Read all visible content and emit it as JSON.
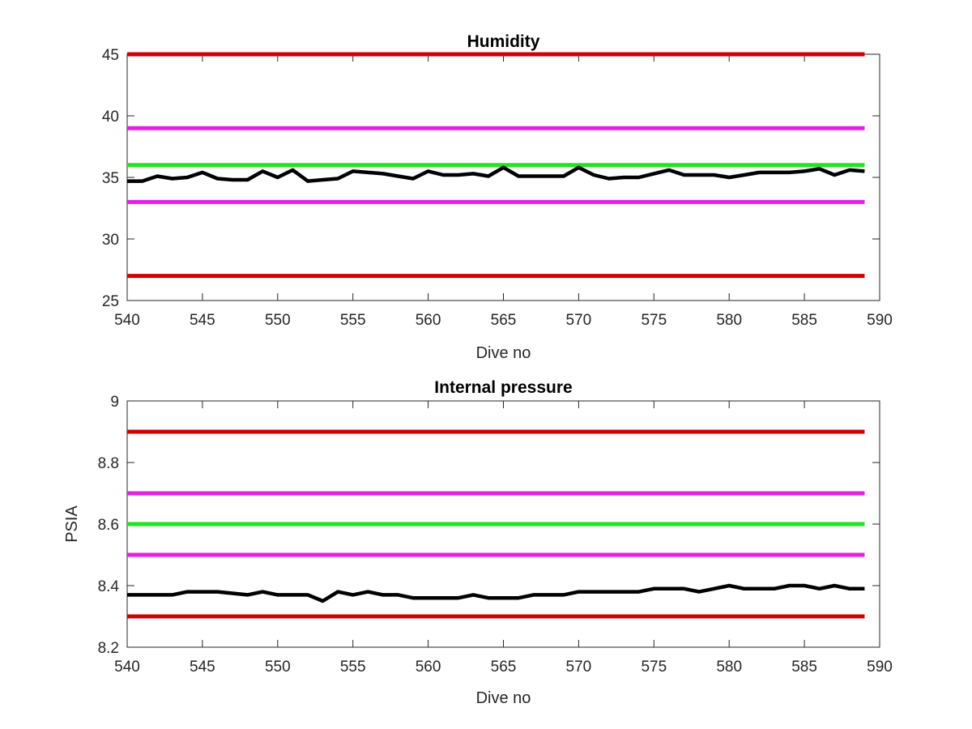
{
  "chart_data": [
    {
      "type": "line",
      "title": "Humidity",
      "xlabel": "Dive no",
      "ylabel": "",
      "xlim": [
        540,
        590
      ],
      "ylim": [
        25,
        45
      ],
      "xticks": [
        "540",
        "545",
        "550",
        "555",
        "560",
        "565",
        "570",
        "575",
        "580",
        "585",
        "590"
      ],
      "yticks": [
        "25",
        "30",
        "35",
        "40",
        "45"
      ],
      "grid": false,
      "reference_lines": [
        {
          "y": 45,
          "color": "#d40000"
        },
        {
          "y": 39,
          "color": "#e61ee6"
        },
        {
          "y": 36,
          "color": "#1ee61e"
        },
        {
          "y": 33,
          "color": "#e61ee6"
        },
        {
          "y": 27,
          "color": "#d40000"
        }
      ],
      "ref_x_range": [
        540,
        589
      ],
      "series": [
        {
          "color": "#000000",
          "x": [
            540,
            541,
            542,
            543,
            544,
            545,
            546,
            547,
            548,
            549,
            550,
            551,
            552,
            553,
            554,
            555,
            556,
            557,
            558,
            559,
            560,
            561,
            562,
            563,
            564,
            565,
            566,
            567,
            568,
            569,
            570,
            571,
            572,
            573,
            574,
            575,
            576,
            577,
            578,
            579,
            580,
            581,
            582,
            583,
            584,
            585,
            586,
            587,
            588,
            589
          ],
          "y": [
            34.7,
            34.7,
            35.1,
            34.9,
            35.0,
            35.4,
            34.9,
            34.8,
            34.8,
            35.5,
            35.0,
            35.6,
            34.7,
            34.8,
            34.9,
            35.5,
            35.4,
            35.3,
            35.1,
            34.9,
            35.5,
            35.2,
            35.2,
            35.3,
            35.1,
            35.8,
            35.1,
            35.1,
            35.1,
            35.1,
            35.8,
            35.2,
            34.9,
            35.0,
            35.0,
            35.3,
            35.6,
            35.2,
            35.2,
            35.2,
            35.0,
            35.2,
            35.4,
            35.4,
            35.4,
            35.5,
            35.7,
            35.2,
            35.6,
            35.5
          ]
        }
      ]
    },
    {
      "type": "line",
      "title": "Internal pressure",
      "xlabel": "Dive no",
      "ylabel": "PSIA",
      "xlim": [
        540,
        590
      ],
      "ylim": [
        8.2,
        9.0
      ],
      "xticks": [
        "540",
        "545",
        "550",
        "555",
        "560",
        "565",
        "570",
        "575",
        "580",
        "585",
        "590"
      ],
      "yticks": [
        "8.2",
        "8.4",
        "8.6",
        "8.8",
        "9"
      ],
      "grid": false,
      "reference_lines": [
        {
          "y": 8.9,
          "color": "#d40000"
        },
        {
          "y": 8.7,
          "color": "#e61ee6"
        },
        {
          "y": 8.6,
          "color": "#1ee61e"
        },
        {
          "y": 8.5,
          "color": "#e61ee6"
        },
        {
          "y": 8.3,
          "color": "#d40000"
        }
      ],
      "ref_x_range": [
        540,
        589
      ],
      "series": [
        {
          "color": "#000000",
          "x": [
            540,
            541,
            542,
            543,
            544,
            545,
            546,
            547,
            548,
            549,
            550,
            551,
            552,
            553,
            554,
            555,
            556,
            557,
            558,
            559,
            560,
            561,
            562,
            563,
            564,
            565,
            566,
            567,
            568,
            569,
            570,
            571,
            572,
            573,
            574,
            575,
            576,
            577,
            578,
            579,
            580,
            581,
            582,
            583,
            584,
            585,
            586,
            587,
            588,
            589
          ],
          "y": [
            8.37,
            8.37,
            8.37,
            8.37,
            8.38,
            8.38,
            8.38,
            8.375,
            8.37,
            8.38,
            8.37,
            8.37,
            8.37,
            8.35,
            8.38,
            8.37,
            8.38,
            8.37,
            8.37,
            8.36,
            8.36,
            8.36,
            8.36,
            8.37,
            8.36,
            8.36,
            8.36,
            8.37,
            8.37,
            8.37,
            8.38,
            8.38,
            8.38,
            8.38,
            8.38,
            8.39,
            8.39,
            8.39,
            8.38,
            8.39,
            8.4,
            8.39,
            8.39,
            8.39,
            8.4,
            8.4,
            8.39,
            8.4,
            8.39,
            8.39
          ]
        }
      ]
    }
  ]
}
